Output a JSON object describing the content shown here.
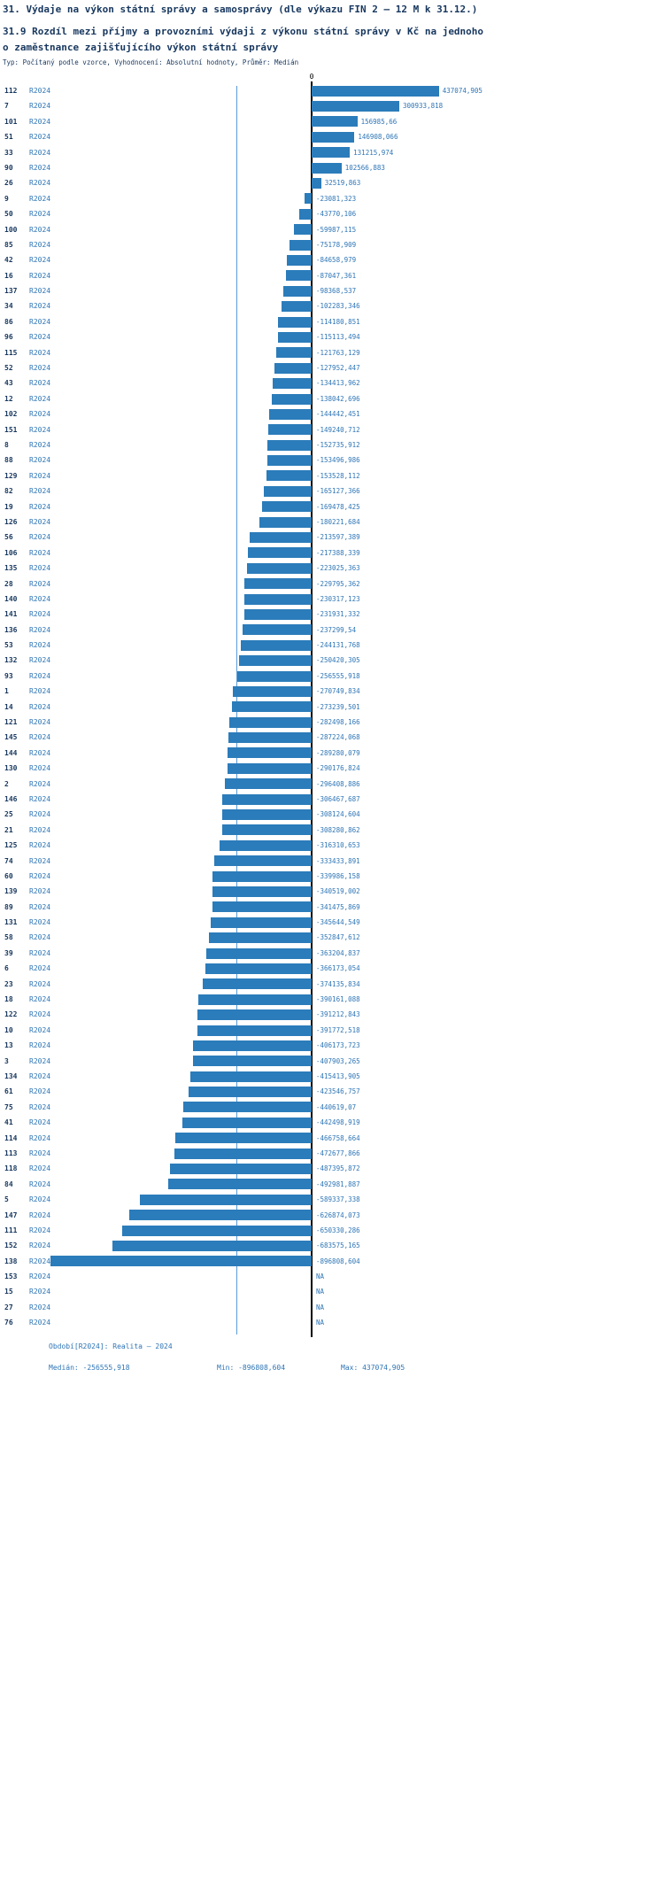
{
  "title": "31. Výdaje na výkon státní správy a samosprávy (dle výkazu FIN 2 – 12 M k 31.12.)",
  "subtitle_line1": "31.9 Rozdíl mezi příjmy a provozními výdaji z výkonu státní správy v Kč na jednoho",
  "subtitle_line2": "o zaměstnance zajišťujícího výkon státní správy",
  "meta": "Typ: Počítaný podle vzorce, Vyhodnocení: Absolutní hodnoty, Průměr: Medián",
  "axis": {
    "zero_label": "0"
  },
  "footer": {
    "period": "Období[R2024]: Realita – 2024",
    "median": "Medián: -256555,918",
    "min": "Min: -896808,604",
    "max": "Max: 437074,905"
  },
  "chart_data": {
    "type": "bar",
    "orientation": "horizontal",
    "series_label": "R2024",
    "bar_color": "#2b7cba",
    "median_line_color": "#5b9bd5",
    "zero_line_color": "#000000",
    "median_value": -256555.918,
    "xlim": [
      -896808.604,
      437074.905
    ],
    "rows": [
      {
        "id": "112",
        "value": 437074.905,
        "label": "437074,905"
      },
      {
        "id": "7",
        "value": 300933.818,
        "label": "300933,818"
      },
      {
        "id": "101",
        "value": 156985.66,
        "label": "156985,66"
      },
      {
        "id": "51",
        "value": 146908.066,
        "label": "146908,066"
      },
      {
        "id": "33",
        "value": 131215.974,
        "label": "131215,974"
      },
      {
        "id": "90",
        "value": 102566.883,
        "label": "102566,883"
      },
      {
        "id": "26",
        "value": 32519.863,
        "label": "32519,863"
      },
      {
        "id": "9",
        "value": -23081.323,
        "label": "-23081,323"
      },
      {
        "id": "50",
        "value": -43770.106,
        "label": "-43770,106"
      },
      {
        "id": "100",
        "value": -59987.115,
        "label": "-59987,115"
      },
      {
        "id": "85",
        "value": -75178.909,
        "label": "-75178,909"
      },
      {
        "id": "42",
        "value": -84658.979,
        "label": "-84658,979"
      },
      {
        "id": "16",
        "value": -87047.361,
        "label": "-87047,361"
      },
      {
        "id": "137",
        "value": -98368.537,
        "label": "-98368,537"
      },
      {
        "id": "34",
        "value": -102283.346,
        "label": "-102283,346"
      },
      {
        "id": "86",
        "value": -114180.851,
        "label": "-114180,851"
      },
      {
        "id": "96",
        "value": -115113.494,
        "label": "-115113,494"
      },
      {
        "id": "115",
        "value": -121763.129,
        "label": "-121763,129"
      },
      {
        "id": "52",
        "value": -127952.447,
        "label": "-127952,447"
      },
      {
        "id": "43",
        "value": -134413.962,
        "label": "-134413,962"
      },
      {
        "id": "12",
        "value": -138042.696,
        "label": "-138042,696"
      },
      {
        "id": "102",
        "value": -144442.451,
        "label": "-144442,451"
      },
      {
        "id": "151",
        "value": -149240.712,
        "label": "-149240,712"
      },
      {
        "id": "8",
        "value": -152735.912,
        "label": "-152735,912"
      },
      {
        "id": "88",
        "value": -153496.986,
        "label": "-153496,986"
      },
      {
        "id": "129",
        "value": -153528.112,
        "label": "-153528,112"
      },
      {
        "id": "82",
        "value": -165127.366,
        "label": "-165127,366"
      },
      {
        "id": "19",
        "value": -169478.425,
        "label": "-169478,425"
      },
      {
        "id": "126",
        "value": -180221.684,
        "label": "-180221,684"
      },
      {
        "id": "56",
        "value": -213597.389,
        "label": "-213597,389"
      },
      {
        "id": "106",
        "value": -217388.339,
        "label": "-217388,339"
      },
      {
        "id": "135",
        "value": -223025.363,
        "label": "-223025,363"
      },
      {
        "id": "28",
        "value": -229795.362,
        "label": "-229795,362"
      },
      {
        "id": "140",
        "value": -230317.123,
        "label": "-230317,123"
      },
      {
        "id": "141",
        "value": -231931.332,
        "label": "-231931,332"
      },
      {
        "id": "136",
        "value": -237299.54,
        "label": "-237299,54"
      },
      {
        "id": "53",
        "value": -244131.768,
        "label": "-244131,768"
      },
      {
        "id": "132",
        "value": -250420.305,
        "label": "-250420,305"
      },
      {
        "id": "93",
        "value": -256555.918,
        "label": "-256555,918"
      },
      {
        "id": "1",
        "value": -270749.834,
        "label": "-270749,834"
      },
      {
        "id": "14",
        "value": -273239.501,
        "label": "-273239,501"
      },
      {
        "id": "121",
        "value": -282498.166,
        "label": "-282498,166"
      },
      {
        "id": "145",
        "value": -287224.068,
        "label": "-287224,068"
      },
      {
        "id": "144",
        "value": -289280.079,
        "label": "-289280,079"
      },
      {
        "id": "130",
        "value": -290176.824,
        "label": "-290176,824"
      },
      {
        "id": "2",
        "value": -296408.886,
        "label": "-296408,886"
      },
      {
        "id": "146",
        "value": -306467.687,
        "label": "-306467,687"
      },
      {
        "id": "25",
        "value": -308124.604,
        "label": "-308124,604"
      },
      {
        "id": "21",
        "value": -308280.862,
        "label": "-308280,862"
      },
      {
        "id": "125",
        "value": -316310.653,
        "label": "-316310,653"
      },
      {
        "id": "74",
        "value": -333433.891,
        "label": "-333433,891"
      },
      {
        "id": "60",
        "value": -339986.158,
        "label": "-339986,158"
      },
      {
        "id": "139",
        "value": -340519.002,
        "label": "-340519,002"
      },
      {
        "id": "89",
        "value": -341475.869,
        "label": "-341475,869"
      },
      {
        "id": "131",
        "value": -345644.549,
        "label": "-345644,549"
      },
      {
        "id": "58",
        "value": -352847.612,
        "label": "-352847,612"
      },
      {
        "id": "39",
        "value": -363204.837,
        "label": "-363204,837"
      },
      {
        "id": "6",
        "value": -366173.054,
        "label": "-366173,054"
      },
      {
        "id": "23",
        "value": -374135.834,
        "label": "-374135,834"
      },
      {
        "id": "18",
        "value": -390161.088,
        "label": "-390161,088"
      },
      {
        "id": "122",
        "value": -391212.843,
        "label": "-391212,843"
      },
      {
        "id": "10",
        "value": -391772.518,
        "label": "-391772,518"
      },
      {
        "id": "13",
        "value": -406173.723,
        "label": "-406173,723"
      },
      {
        "id": "3",
        "value": -407903.265,
        "label": "-407903,265"
      },
      {
        "id": "134",
        "value": -415413.905,
        "label": "-415413,905"
      },
      {
        "id": "61",
        "value": -423546.757,
        "label": "-423546,757"
      },
      {
        "id": "75",
        "value": -440619.07,
        "label": "-440619,07"
      },
      {
        "id": "41",
        "value": -442498.919,
        "label": "-442498,919"
      },
      {
        "id": "114",
        "value": -466758.664,
        "label": "-466758,664"
      },
      {
        "id": "113",
        "value": -472677.866,
        "label": "-472677,866"
      },
      {
        "id": "118",
        "value": -487395.872,
        "label": "-487395,872"
      },
      {
        "id": "84",
        "value": -492981.887,
        "label": "-492981,887"
      },
      {
        "id": "5",
        "value": -589337.338,
        "label": "-589337,338"
      },
      {
        "id": "147",
        "value": -626874.073,
        "label": "-626874,073"
      },
      {
        "id": "111",
        "value": -650330.286,
        "label": "-650330,286"
      },
      {
        "id": "152",
        "value": -683575.165,
        "label": "-683575,165"
      },
      {
        "id": "138",
        "value": -896808.604,
        "label": "-896808,604"
      },
      {
        "id": "153",
        "value": null,
        "label": "NA"
      },
      {
        "id": "15",
        "value": null,
        "label": "NA"
      },
      {
        "id": "27",
        "value": null,
        "label": "NA"
      },
      {
        "id": "76",
        "value": null,
        "label": "NA"
      }
    ]
  }
}
